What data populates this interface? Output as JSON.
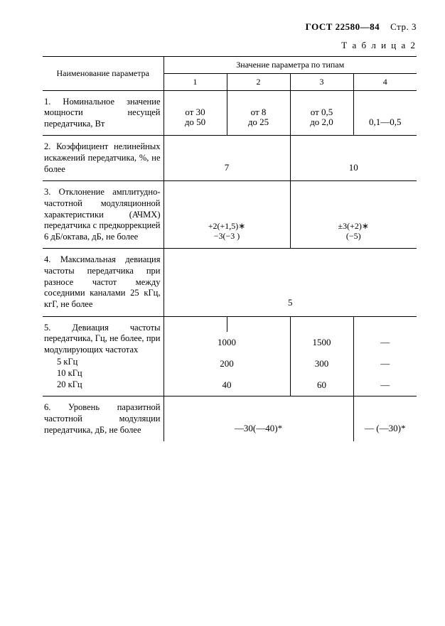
{
  "header": {
    "gost": "ГОСТ 22580—84",
    "page": "Стр. 3"
  },
  "caption": "Т а б л и ц а  2",
  "thead": {
    "name": "Наименование параметра",
    "valgroup": "Значение параметра по типам",
    "cols": [
      "1",
      "2",
      "3",
      "4"
    ]
  },
  "rows": [
    {
      "name": "1. Номинальное значение мощности несущей передатчика, Вт",
      "vals": [
        "от 30\nдо 50",
        "от 8\nдо 25",
        "от 0,5\nдо 2,0",
        "0,1—0,5"
      ],
      "span": "1111"
    },
    {
      "name": "2. Коэффициент нелинейных искажений передатчика, %, не более",
      "vals": [
        "7",
        "10"
      ],
      "span": "22"
    },
    {
      "name": "3. Отклонение амплитудно-частотной модуляционной характеристики (АЧМХ) передатчика с предкоррекцией 6 дБ/октава, дБ, не более",
      "vals": [
        "+2(+1,5)∗\n−3(−3 )",
        "±3(+2)∗\n   (−5)"
      ],
      "span": "22",
      "style": "tol"
    },
    {
      "name": "4. Максимальная девиация частоты передатчика при разносе частот между соседними каналами 25 кГц, кгГ, не более",
      "vals": [
        "5"
      ],
      "span": "4"
    },
    {
      "name": "5. Девиация частоты передатчика, Гц, не более, при модулирующих частотах",
      "sub": [
        {
          "label": "5 кГц",
          "vals": [
            "1000",
            "1500",
            "—"
          ],
          "span": "211"
        },
        {
          "label": "10 кГц",
          "vals": [
            "200",
            "300",
            "—"
          ],
          "span": "211"
        },
        {
          "label": "20 кГц",
          "vals": [
            "40",
            "60",
            "—"
          ],
          "span": "211"
        }
      ]
    },
    {
      "name": "6. Уровень паразитной частотной модуляции передатчика, дБ, не более",
      "vals": [
        "—30(—40)*",
        "— (—30)*"
      ],
      "span": "31"
    }
  ],
  "colors": {
    "text": "#000000",
    "bg": "#ffffff",
    "rule": "#000000"
  }
}
